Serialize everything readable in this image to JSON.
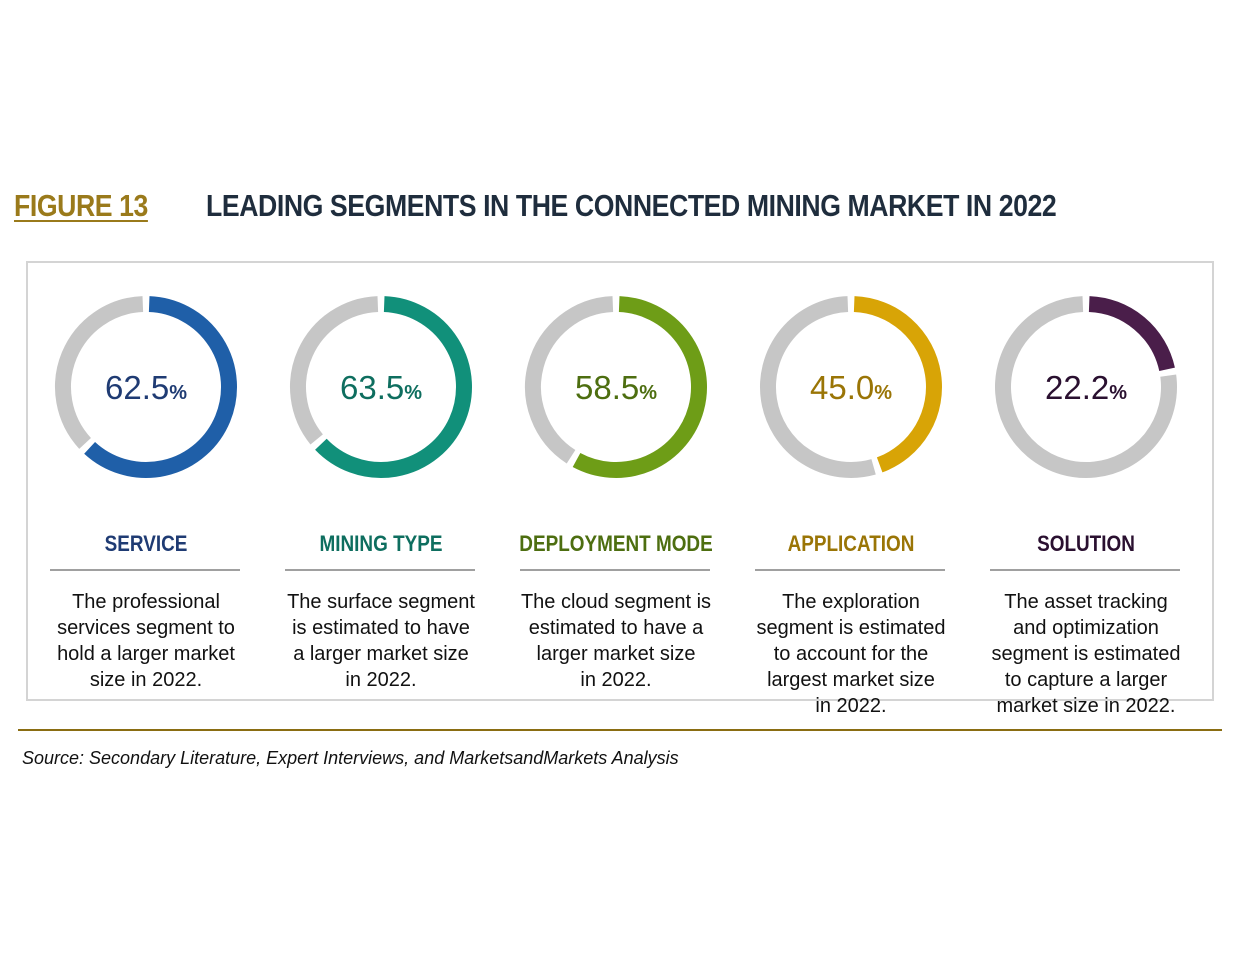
{
  "header": {
    "figure_label": "FIGURE 13",
    "title": "LEADING SEGMENTS IN THE CONNECTED MINING MARKET IN 2022"
  },
  "chart_data": {
    "type": "pie",
    "variant": "donut",
    "title": "LEADING SEGMENTS IN THE CONNECTED MINING MARKET IN 2022",
    "track_color": "#c6c6c6",
    "segments": [
      {
        "name": "SERVICE",
        "value": 62.5,
        "value_label": "62.5",
        "unit": "%",
        "color": "#1f5fa8",
        "text_color": "#1f3b73",
        "description": [
          "The professional",
          "services segment to",
          "hold a larger market",
          "size in 2022."
        ]
      },
      {
        "name": "MINING TYPE",
        "value": 63.5,
        "value_label": "63.5",
        "unit": "%",
        "color": "#11907a",
        "text_color": "#0e6e5f",
        "description": [
          "The surface segment",
          "is estimated to have",
          "a larger market size",
          "in 2022."
        ]
      },
      {
        "name": "DEPLOYMENT MODE",
        "value": 58.5,
        "value_label": "58.5",
        "unit": "%",
        "color": "#6e9d17",
        "text_color": "#4d6e10",
        "description": [
          "The cloud segment is",
          "estimated to have a",
          "larger market size",
          "in 2022."
        ]
      },
      {
        "name": "APPLICATION",
        "value": 45.0,
        "value_label": "45.0",
        "unit": "%",
        "color": "#d8a406",
        "text_color": "#9a7506",
        "description": [
          "The exploration",
          "segment is estimated",
          "to account for the",
          "largest market size",
          "in 2022."
        ]
      },
      {
        "name": "SOLUTION",
        "value": 22.2,
        "value_label": "22.2",
        "unit": "%",
        "color": "#4a1e4a",
        "text_color": "#2a1030",
        "description": [
          "The asset tracking",
          "and optimization",
          "segment is estimated",
          "to capture a larger",
          "market size in 2022."
        ]
      }
    ]
  },
  "footer": {
    "source": "Source: Secondary Literature, Expert Interviews, and MarketsandMarkets Analysis"
  }
}
